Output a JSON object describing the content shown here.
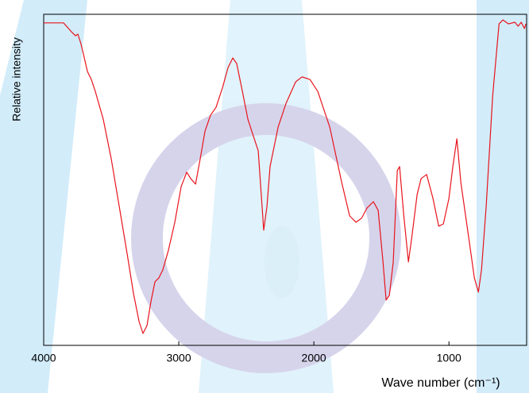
{
  "chart_data": {
    "type": "line",
    "xlabel": "Wave number (cm⁻¹)",
    "ylabel": "Relative intensity",
    "xlim": [
      4000,
      425
    ],
    "ylim": [
      0,
      100
    ],
    "xticks": [
      4000,
      3000,
      2000,
      1000
    ],
    "series": [
      {
        "color": "#e8141c",
        "x": [
          4000,
          3853,
          3794,
          3765,
          3747,
          3724,
          3706,
          3676,
          3647,
          3618,
          3559,
          3500,
          3441,
          3382,
          3335,
          3294,
          3265,
          3235,
          3206,
          3176,
          3147,
          3118,
          3076,
          3029,
          2982,
          2941,
          2912,
          2876,
          2841,
          2806,
          2765,
          2724,
          2676,
          2635,
          2600,
          2571,
          2529,
          2488,
          2441,
          2412,
          2371,
          2347,
          2324,
          2265,
          2206,
          2135,
          2088,
          2029,
          1971,
          1882,
          1794,
          1735,
          1688,
          1647,
          1606,
          1559,
          1524,
          1488,
          1465,
          1441,
          1412,
          1382,
          1365,
          1335,
          1300,
          1276,
          1235,
          1206,
          1165,
          1118,
          1076,
          1041,
          1000,
          971,
          941,
          912,
          853,
          812,
          782,
          759,
          724,
          676,
          629,
          600,
          559,
          512,
          488,
          465,
          441,
          430
        ],
        "values": [
          97.4,
          97.4,
          94.7,
          93.5,
          94.0,
          91.1,
          88.0,
          82.7,
          80.3,
          76.7,
          68.3,
          56.4,
          42.0,
          27.6,
          15.6,
          7.2,
          3.6,
          6.0,
          13.2,
          19.2,
          20.4,
          22.8,
          28.8,
          37.2,
          48.0,
          52.3,
          50.4,
          48.7,
          56.4,
          64.7,
          69.5,
          71.9,
          77.9,
          83.9,
          86.8,
          85.1,
          76.7,
          68.3,
          62.4,
          58.8,
          34.8,
          42.0,
          54.0,
          65.9,
          73.1,
          79.6,
          81.1,
          80.3,
          76.7,
          65.9,
          49.2,
          39.1,
          37.2,
          38.4,
          41.5,
          43.4,
          40.8,
          25.2,
          13.7,
          15.1,
          25.2,
          52.8,
          54.0,
          39.6,
          25.2,
          32.4,
          45.6,
          50.4,
          51.6,
          44.4,
          36.0,
          36.7,
          44.4,
          54.0,
          62.4,
          49.2,
          32.4,
          20.4,
          16.1,
          22.8,
          42.0,
          75.5,
          97.1,
          98.3,
          97.1,
          97.6,
          96.4,
          97.6,
          95.7,
          97.1
        ]
      }
    ]
  }
}
